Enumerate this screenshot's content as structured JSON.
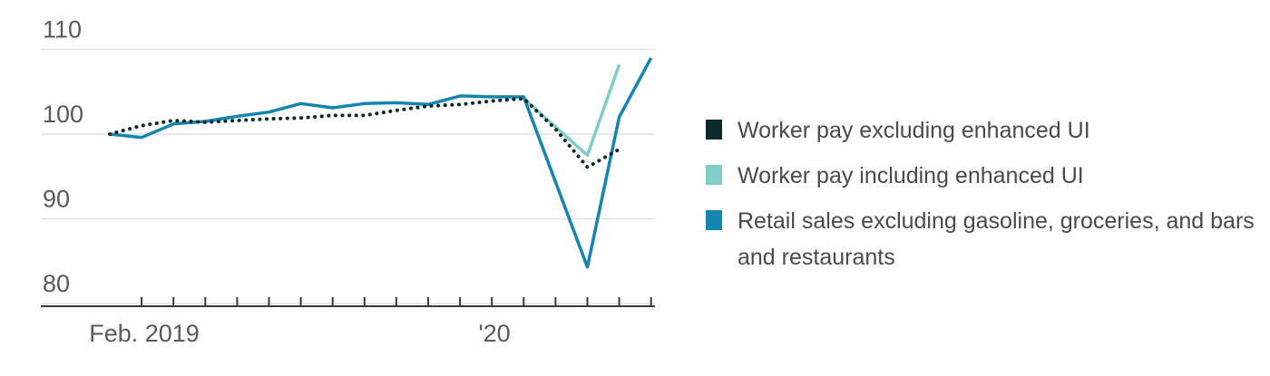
{
  "chart_data": {
    "type": "line",
    "x_labels": [
      {
        "index": 0,
        "label": "Feb. 2019"
      },
      {
        "index": 11,
        "label": "'20"
      }
    ],
    "ylim": [
      78,
      112
    ],
    "yticks": [
      80,
      90,
      100,
      110
    ],
    "grid": true,
    "legend_position": "right",
    "series": [
      {
        "name": "Worker pay excluding enhanced UI",
        "color": "#0b2a2c",
        "style": "dotted",
        "values": [
          100,
          101,
          101.6,
          101.4,
          101.6,
          101.8,
          101.9,
          102.2,
          102.2,
          102.8,
          103.3,
          103.5,
          103.9,
          104.2,
          100.6,
          96.1,
          98.2,
          null
        ]
      },
      {
        "name": "Worker pay including enhanced UI",
        "color": "#7fcdc5",
        "style": "solid",
        "values": [
          null,
          null,
          null,
          null,
          null,
          null,
          null,
          null,
          null,
          null,
          null,
          null,
          null,
          104.2,
          null,
          97.5,
          108.2,
          null
        ]
      },
      {
        "name": "Retail sales excluding gasoline, groceries, and bars and restaurants",
        "color": "#1484b0",
        "style": "solid",
        "values": [
          100,
          99.6,
          101.2,
          101.5,
          102.1,
          102.6,
          103.6,
          103.1,
          103.6,
          103.7,
          103.5,
          104.5,
          104.4,
          104.4,
          null,
          84.3,
          102,
          109
        ]
      }
    ]
  }
}
